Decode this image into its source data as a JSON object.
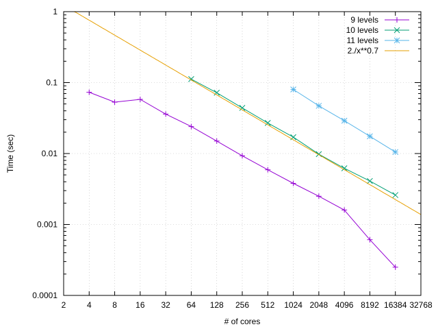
{
  "chart_data": {
    "type": "line",
    "title": "",
    "xlabel": "# of cores",
    "ylabel": "Time (sec)",
    "x_scale": "log2",
    "y_scale": "log10",
    "xlim": [
      2,
      32768
    ],
    "ylim": [
      0.0001,
      1
    ],
    "grid": true,
    "legend_position": "top-right",
    "x_ticks": [
      2,
      4,
      8,
      16,
      32,
      64,
      128,
      256,
      512,
      1024,
      2048,
      4096,
      8192,
      16384,
      32768
    ],
    "x_tick_labels": [
      "2",
      "4",
      "8",
      "16",
      "32",
      "64",
      "128",
      "256",
      "512",
      "1024",
      "2048",
      "4096",
      "8192",
      "16384",
      "32768"
    ],
    "y_ticks": [
      0.0001,
      0.001,
      0.01,
      0.1,
      1
    ],
    "y_tick_labels": [
      "0.0001",
      "0.001",
      "0.01",
      "0.1",
      "1"
    ],
    "series": [
      {
        "name": "9 levels",
        "color": "#9400d3",
        "marker": "plus",
        "x": [
          4,
          8,
          16,
          32,
          64,
          128,
          256,
          512,
          1024,
          2048,
          4096,
          8192,
          16384
        ],
        "y": [
          0.073,
          0.053,
          0.058,
          0.036,
          0.024,
          0.015,
          0.0093,
          0.0059,
          0.0038,
          0.0025,
          0.0016,
          0.00061,
          0.00025
        ]
      },
      {
        "name": "10 levels",
        "color": "#009e73",
        "marker": "cross",
        "x": [
          64,
          128,
          256,
          512,
          1024,
          2048,
          4096,
          8192,
          16384
        ],
        "y": [
          0.112,
          0.072,
          0.044,
          0.027,
          0.017,
          0.0098,
          0.0062,
          0.0041,
          0.0026
        ]
      },
      {
        "name": "11 levels",
        "color": "#56b4e9",
        "marker": "star",
        "x": [
          1024,
          2048,
          4096,
          8192,
          16384
        ],
        "y": [
          0.08,
          0.047,
          0.029,
          0.0175,
          0.0105
        ]
      },
      {
        "name": "2./x**0.7",
        "color": "#e69f00",
        "marker": "none",
        "function": {
          "coef": 2,
          "exponent": 0.7
        }
      }
    ]
  }
}
